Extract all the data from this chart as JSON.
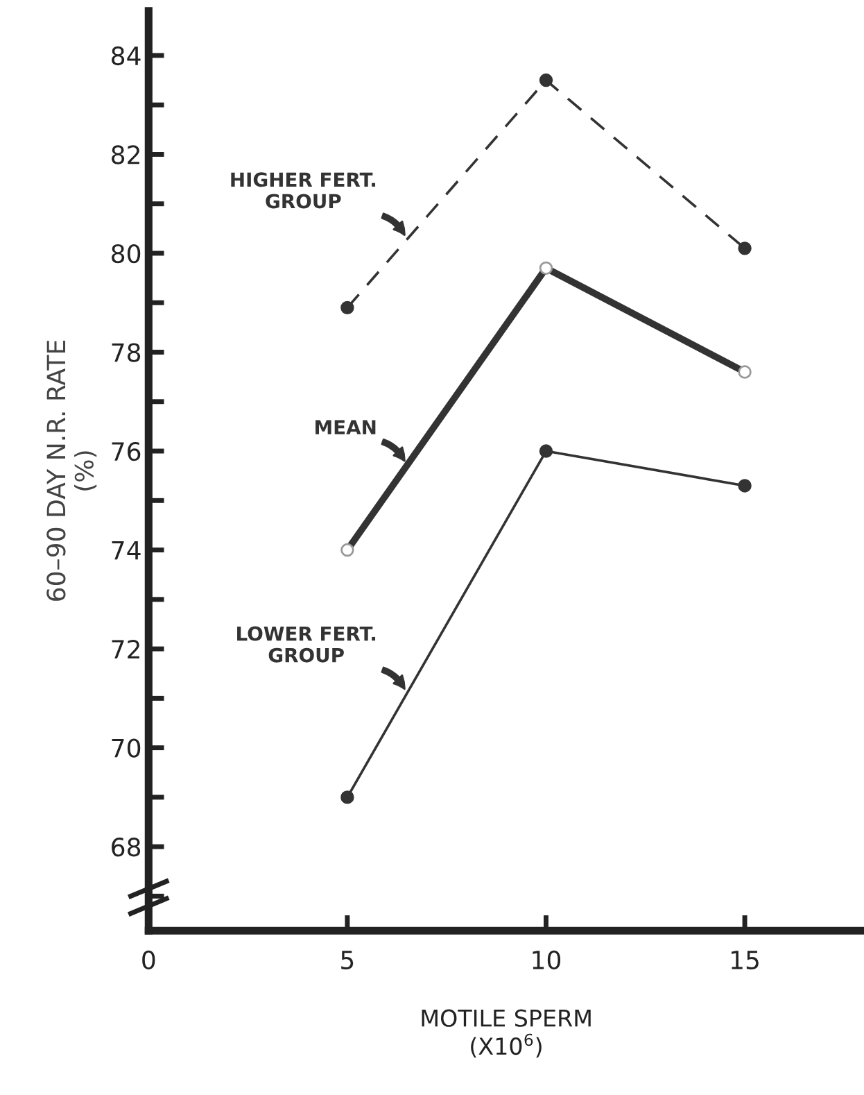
{
  "chart_data": {
    "type": "line",
    "xlabel": "MOTILE SPERM\n(X10$^{6}$)",
    "ylabel": "60–90 DAY N.R. RATE\n(%)",
    "x": [
      5,
      10,
      15
    ],
    "series": [
      {
        "name": "HIGHER FERT.\nGROUP",
        "color": "#333333",
        "values": [
          78.9,
          83.5,
          80.1
        ],
        "line_style": "dashed",
        "marker": "circle"
      },
      {
        "name": "MEAN",
        "color": "#333333",
        "values": [
          74.0,
          79.7,
          77.6
        ],
        "line_style": "solid",
        "marker": "circle"
      },
      {
        "name": "LOWER FERT.\nGROUP",
        "color": "#333333",
        "values": [
          69.0,
          76.0,
          75.3
        ],
        "line_style": "solid",
        "marker": "circle"
      }
    ],
    "xlim": [
      0,
      18
    ],
    "ylim": [
      66.3,
      84.9
    ],
    "xticks": [
      0,
      5,
      10,
      15
    ],
    "yticks": [
      {
        "value": 67,
        "label": null
      },
      68,
      {
        "value": 69,
        "label": null
      },
      70,
      {
        "value": 71,
        "label": null
      },
      72,
      {
        "value": 73,
        "label": null
      },
      74,
      {
        "value": 75,
        "label": null
      },
      76,
      {
        "value": 77,
        "label": null
      },
      78,
      {
        "value": 79,
        "label": null
      },
      80,
      {
        "value": 81,
        "label": null
      },
      82,
      {
        "value": 83,
        "label": null
      },
      84
    ],
    "grid": false,
    "legend": false
  }
}
